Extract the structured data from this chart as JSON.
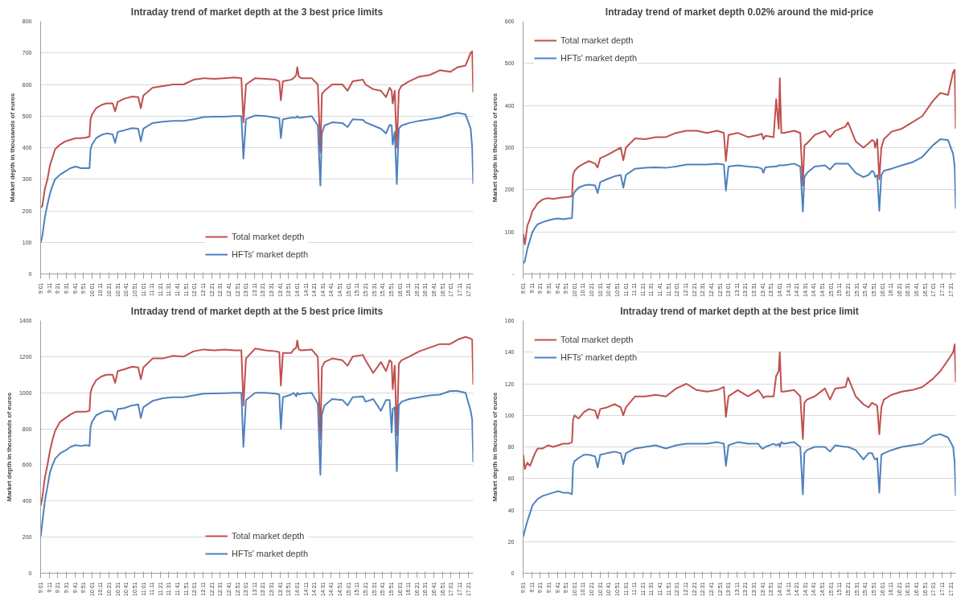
{
  "chart_data": [
    {
      "type": "line",
      "title": "Intraday trend of market depth at the 3 best price limits",
      "ylabel": "Market depth in thousands of euros",
      "grid": "y",
      "legend": "bottom",
      "x": [
        9.02,
        9.05,
        9.1,
        9.15,
        9.2,
        9.25,
        9.3,
        9.4,
        9.5,
        9.6,
        9.7,
        9.8,
        9.9,
        9.97,
        9.99,
        10.02,
        10.1,
        10.2,
        10.3,
        10.42,
        10.47,
        10.52,
        10.65,
        10.8,
        10.92,
        10.97,
        11.02,
        11.2,
        11.4,
        11.6,
        11.8,
        12.0,
        12.2,
        12.4,
        12.6,
        12.8,
        12.93,
        12.97,
        13.02,
        13.2,
        13.4,
        13.6,
        13.67,
        13.7,
        13.74,
        13.9,
        13.95,
        14.0,
        14.02,
        14.05,
        14.1,
        14.3,
        14.42,
        14.47,
        14.5,
        14.55,
        14.7,
        14.9,
        15.0,
        15.1,
        15.3,
        15.35,
        15.5,
        15.65,
        15.75,
        15.82,
        15.86,
        15.88,
        15.92,
        15.96,
        16.0,
        16.05,
        16.2,
        16.4,
        16.6,
        16.8,
        17.0,
        17.15,
        17.3,
        17.4,
        17.43,
        17.45
      ],
      "xlim": [
        9.0167,
        17.45
      ],
      "xticks": [
        {
          "value": 9.0167,
          "label": "9:01"
        },
        {
          "value": 9.1833,
          "label": "9:11"
        },
        {
          "value": 9.35,
          "label": "9:21"
        },
        {
          "value": 9.5167,
          "label": "9:31"
        },
        {
          "value": 9.6833,
          "label": "9:41"
        },
        {
          "value": 9.85,
          "label": "9:51"
        },
        {
          "value": 10.0167,
          "label": "10:01"
        },
        {
          "value": 10.1833,
          "label": "10:11"
        },
        {
          "value": 10.35,
          "label": "10:21"
        },
        {
          "value": 10.5167,
          "label": "10:31"
        },
        {
          "value": 10.6833,
          "label": "10:41"
        },
        {
          "value": 10.85,
          "label": "10:51"
        },
        {
          "value": 11.0167,
          "label": "11:01"
        },
        {
          "value": 11.1833,
          "label": "11:11"
        },
        {
          "value": 11.35,
          "label": "11:21"
        },
        {
          "value": 11.5167,
          "label": "11:31"
        },
        {
          "value": 11.6833,
          "label": "11:41"
        },
        {
          "value": 11.85,
          "label": "11:51"
        },
        {
          "value": 12.0167,
          "label": "12:01"
        },
        {
          "value": 12.1833,
          "label": "12:11"
        },
        {
          "value": 12.35,
          "label": "12:21"
        },
        {
          "value": 12.5167,
          "label": "12:31"
        },
        {
          "value": 12.6833,
          "label": "12:41"
        },
        {
          "value": 12.85,
          "label": "12:51"
        },
        {
          "value": 13.0167,
          "label": "13:01"
        },
        {
          "value": 13.1833,
          "label": "13:11"
        },
        {
          "value": 13.35,
          "label": "13:21"
        },
        {
          "value": 13.5167,
          "label": "13:31"
        },
        {
          "value": 13.6833,
          "label": "13:41"
        },
        {
          "value": 13.85,
          "label": "13:51"
        },
        {
          "value": 14.0167,
          "label": "14:01"
        },
        {
          "value": 14.1833,
          "label": "14:11"
        },
        {
          "value": 14.35,
          "label": "14:21"
        },
        {
          "value": 14.5167,
          "label": "14:31"
        },
        {
          "value": 14.6833,
          "label": "14:41"
        },
        {
          "value": 14.85,
          "label": "14:51"
        },
        {
          "value": 15.0167,
          "label": "15:01"
        },
        {
          "value": 15.1833,
          "label": "15:11"
        },
        {
          "value": 15.35,
          "label": "15:21"
        },
        {
          "value": 15.5167,
          "label": "15:31"
        },
        {
          "value": 15.6833,
          "label": "15:41"
        },
        {
          "value": 15.85,
          "label": "15:51"
        },
        {
          "value": 16.0167,
          "label": "16:01"
        },
        {
          "value": 16.1833,
          "label": "16:11"
        },
        {
          "value": 16.35,
          "label": "16:21"
        },
        {
          "value": 16.5167,
          "label": "16:31"
        },
        {
          "value": 16.6833,
          "label": "16:41"
        },
        {
          "value": 16.85,
          "label": "16:51"
        },
        {
          "value": 17.0167,
          "label": "17:01"
        },
        {
          "value": 17.1833,
          "label": "17:11"
        },
        {
          "value": 17.35,
          "label": "17:21"
        }
      ],
      "ylim": [
        0,
        800
      ],
      "yticks": [
        0,
        100,
        200,
        300,
        400,
        500,
        600,
        700,
        800
      ],
      "series": [
        {
          "name": "Total market depth",
          "color": "#c0504d",
          "values": [
            210,
            215,
            270,
            300,
            345,
            370,
            395,
            410,
            420,
            425,
            430,
            430,
            432,
            435,
            490,
            505,
            525,
            535,
            540,
            540,
            515,
            545,
            555,
            562,
            560,
            525,
            565,
            590,
            595,
            600,
            600,
            615,
            620,
            618,
            620,
            622,
            620,
            480,
            600,
            620,
            618,
            615,
            610,
            550,
            610,
            615,
            620,
            630,
            655,
            625,
            620,
            620,
            600,
            385,
            570,
            580,
            600,
            600,
            580,
            610,
            615,
            600,
            585,
            580,
            560,
            590,
            580,
            540,
            580,
            400,
            580,
            595,
            610,
            625,
            630,
            645,
            640,
            655,
            660,
            700,
            705,
            575
          ]
        },
        {
          "name": "HFTs' market depth",
          "color": "#4f81bd",
          "values": [
            100,
            120,
            180,
            220,
            255,
            280,
            300,
            315,
            325,
            335,
            340,
            335,
            335,
            335,
            395,
            410,
            430,
            440,
            445,
            442,
            415,
            450,
            455,
            462,
            460,
            420,
            460,
            478,
            482,
            485,
            485,
            490,
            497,
            498,
            498,
            500,
            500,
            365,
            490,
            502,
            500,
            495,
            493,
            430,
            490,
            495,
            495,
            495,
            500,
            495,
            495,
            500,
            470,
            280,
            445,
            470,
            480,
            478,
            465,
            490,
            488,
            480,
            470,
            460,
            445,
            472,
            470,
            410,
            450,
            285,
            460,
            470,
            478,
            485,
            490,
            495,
            505,
            510,
            505,
            460,
            400,
            285
          ]
        }
      ]
    },
    {
      "type": "line",
      "title": "Intraday trend of market depth 0.02% around the mid-price",
      "ylabel": "Market depth in thousands of euros",
      "grid": "y",
      "legend": "top left",
      "x": [
        9.02,
        9.05,
        9.1,
        9.15,
        9.2,
        9.25,
        9.3,
        9.4,
        9.5,
        9.6,
        9.7,
        9.8,
        9.9,
        9.97,
        9.99,
        10.02,
        10.1,
        10.2,
        10.3,
        10.42,
        10.47,
        10.52,
        10.65,
        10.8,
        10.92,
        10.97,
        11.02,
        11.2,
        11.4,
        11.6,
        11.8,
        12.0,
        12.2,
        12.4,
        12.6,
        12.8,
        12.93,
        12.97,
        13.02,
        13.2,
        13.4,
        13.6,
        13.67,
        13.7,
        13.74,
        13.9,
        13.95,
        14.0,
        14.02,
        14.05,
        14.1,
        14.3,
        14.42,
        14.47,
        14.5,
        14.55,
        14.7,
        14.9,
        15.0,
        15.1,
        15.3,
        15.35,
        15.5,
        15.65,
        15.75,
        15.82,
        15.86,
        15.88,
        15.92,
        15.96,
        16.0,
        16.05,
        16.2,
        16.4,
        16.6,
        16.8,
        17.0,
        17.15,
        17.3,
        17.4,
        17.43,
        17.45
      ],
      "xlim": [
        9.0167,
        17.45
      ],
      "xticks": [
        {
          "value": 9.0167,
          "label": "9:01"
        },
        {
          "value": 9.1833,
          "label": "9:11"
        },
        {
          "value": 9.35,
          "label": "9:21"
        },
        {
          "value": 9.5167,
          "label": "9:31"
        },
        {
          "value": 9.6833,
          "label": "9:41"
        },
        {
          "value": 9.85,
          "label": "9:51"
        },
        {
          "value": 10.0167,
          "label": "10:01"
        },
        {
          "value": 10.1833,
          "label": "10:11"
        },
        {
          "value": 10.35,
          "label": "10:21"
        },
        {
          "value": 10.5167,
          "label": "10:31"
        },
        {
          "value": 10.6833,
          "label": "10:41"
        },
        {
          "value": 10.85,
          "label": "10:51"
        },
        {
          "value": 11.0167,
          "label": "11:01"
        },
        {
          "value": 11.1833,
          "label": "11:11"
        },
        {
          "value": 11.35,
          "label": "11:21"
        },
        {
          "value": 11.5167,
          "label": "11:31"
        },
        {
          "value": 11.6833,
          "label": "11:41"
        },
        {
          "value": 11.85,
          "label": "11:51"
        },
        {
          "value": 12.0167,
          "label": "12:01"
        },
        {
          "value": 12.1833,
          "label": "12:11"
        },
        {
          "value": 12.35,
          "label": "12:21"
        },
        {
          "value": 12.5167,
          "label": "12:31"
        },
        {
          "value": 12.6833,
          "label": "12:41"
        },
        {
          "value": 12.85,
          "label": "12:51"
        },
        {
          "value": 13.0167,
          "label": "13:01"
        },
        {
          "value": 13.1833,
          "label": "13:11"
        },
        {
          "value": 13.35,
          "label": "13:21"
        },
        {
          "value": 13.5167,
          "label": "13:31"
        },
        {
          "value": 13.6833,
          "label": "13:41"
        },
        {
          "value": 13.85,
          "label": "13:51"
        },
        {
          "value": 14.0167,
          "label": "14:01"
        },
        {
          "value": 14.1833,
          "label": "14:11"
        },
        {
          "value": 14.35,
          "label": "14:21"
        },
        {
          "value": 14.5167,
          "label": "14:31"
        },
        {
          "value": 14.6833,
          "label": "14:41"
        },
        {
          "value": 14.85,
          "label": "14:51"
        },
        {
          "value": 15.0167,
          "label": "15:01"
        },
        {
          "value": 15.1833,
          "label": "15:11"
        },
        {
          "value": 15.35,
          "label": "15:21"
        },
        {
          "value": 15.5167,
          "label": "15:31"
        },
        {
          "value": 15.6833,
          "label": "15:41"
        },
        {
          "value": 15.85,
          "label": "15:51"
        },
        {
          "value": 16.0167,
          "label": "16:01"
        },
        {
          "value": 16.1833,
          "label": "16:11"
        },
        {
          "value": 16.35,
          "label": "16:21"
        },
        {
          "value": 16.5167,
          "label": "16:31"
        },
        {
          "value": 16.6833,
          "label": "16:41"
        },
        {
          "value": 16.85,
          "label": "16:51"
        },
        {
          "value": 17.0167,
          "label": "17:01"
        },
        {
          "value": 17.1833,
          "label": "17:11"
        },
        {
          "value": 17.35,
          "label": "17:21"
        }
      ],
      "ylim": [
        0,
        600
      ],
      "yticks": [
        {
          "value": 0,
          "label": "-"
        },
        100,
        200,
        300,
        400,
        500,
        600
      ],
      "series": [
        {
          "name": "Total market depth",
          "color": "#c0504d",
          "values": [
            95,
            70,
            115,
            130,
            150,
            158,
            168,
            177,
            180,
            178,
            180,
            182,
            183,
            185,
            235,
            245,
            255,
            262,
            268,
            262,
            253,
            275,
            282,
            292,
            300,
            270,
            300,
            322,
            320,
            325,
            325,
            335,
            340,
            340,
            335,
            340,
            335,
            268,
            330,
            335,
            325,
            330,
            333,
            320,
            328,
            325,
            415,
            345,
            465,
            335,
            335,
            340,
            335,
            210,
            305,
            310,
            330,
            340,
            325,
            340,
            350,
            360,
            315,
            300,
            310,
            318,
            315,
            300,
            320,
            225,
            300,
            320,
            338,
            345,
            360,
            375,
            410,
            430,
            425,
            480,
            485,
            345
          ]
        },
        {
          "name": "HFTs' market depth",
          "color": "#4f81bd",
          "values": [
            25,
            30,
            60,
            80,
            100,
            110,
            118,
            123,
            127,
            130,
            132,
            130,
            132,
            133,
            185,
            195,
            205,
            210,
            212,
            210,
            192,
            218,
            225,
            232,
            235,
            205,
            235,
            250,
            252,
            253,
            252,
            255,
            260,
            260,
            260,
            262,
            260,
            198,
            255,
            258,
            255,
            253,
            250,
            240,
            253,
            255,
            255,
            258,
            258,
            258,
            258,
            262,
            255,
            148,
            230,
            240,
            255,
            258,
            248,
            262,
            262,
            262,
            240,
            230,
            235,
            245,
            240,
            230,
            235,
            150,
            235,
            245,
            250,
            258,
            265,
            278,
            305,
            320,
            318,
            285,
            255,
            155
          ]
        }
      ]
    },
    {
      "type": "line",
      "title": "Intraday trend of market depth at the 5 best price limits",
      "ylabel": "Market depth in thousands of euros",
      "grid": "y",
      "legend": "bottom",
      "x": [
        9.02,
        9.05,
        9.1,
        9.15,
        9.2,
        9.25,
        9.3,
        9.4,
        9.5,
        9.6,
        9.7,
        9.8,
        9.9,
        9.97,
        9.99,
        10.02,
        10.1,
        10.2,
        10.3,
        10.42,
        10.47,
        10.52,
        10.65,
        10.8,
        10.92,
        10.97,
        11.02,
        11.2,
        11.4,
        11.6,
        11.8,
        12.0,
        12.2,
        12.4,
        12.6,
        12.8,
        12.93,
        12.97,
        13.02,
        13.2,
        13.4,
        13.6,
        13.67,
        13.7,
        13.74,
        13.9,
        13.95,
        14.0,
        14.02,
        14.05,
        14.1,
        14.3,
        14.42,
        14.47,
        14.5,
        14.55,
        14.7,
        14.9,
        15.0,
        15.1,
        15.3,
        15.35,
        15.5,
        15.65,
        15.75,
        15.82,
        15.86,
        15.88,
        15.92,
        15.96,
        16.0,
        16.05,
        16.2,
        16.4,
        16.6,
        16.8,
        17.0,
        17.15,
        17.3,
        17.4,
        17.43,
        17.45
      ],
      "xlim": [
        9.0167,
        17.45
      ],
      "xticks": [
        {
          "value": 9.0167,
          "label": "9:01"
        },
        {
          "value": 9.1833,
          "label": "9:11"
        },
        {
          "value": 9.35,
          "label": "9:21"
        },
        {
          "value": 9.5167,
          "label": "9:31"
        },
        {
          "value": 9.6833,
          "label": "9:41"
        },
        {
          "value": 9.85,
          "label": "9:51"
        },
        {
          "value": 10.0167,
          "label": "10:01"
        },
        {
          "value": 10.1833,
          "label": "10:11"
        },
        {
          "value": 10.35,
          "label": "10:21"
        },
        {
          "value": 10.5167,
          "label": "10:31"
        },
        {
          "value": 10.6833,
          "label": "10:41"
        },
        {
          "value": 10.85,
          "label": "10:51"
        },
        {
          "value": 11.0167,
          "label": "11:01"
        },
        {
          "value": 11.1833,
          "label": "11:11"
        },
        {
          "value": 11.35,
          "label": "11:21"
        },
        {
          "value": 11.5167,
          "label": "11:31"
        },
        {
          "value": 11.6833,
          "label": "11:41"
        },
        {
          "value": 11.85,
          "label": "11:51"
        },
        {
          "value": 12.0167,
          "label": "12:01"
        },
        {
          "value": 12.1833,
          "label": "12:11"
        },
        {
          "value": 12.35,
          "label": "12:21"
        },
        {
          "value": 12.5167,
          "label": "12:31"
        },
        {
          "value": 12.6833,
          "label": "12:41"
        },
        {
          "value": 12.85,
          "label": "12:51"
        },
        {
          "value": 13.0167,
          "label": "13:01"
        },
        {
          "value": 13.1833,
          "label": "13:11"
        },
        {
          "value": 13.35,
          "label": "13:21"
        },
        {
          "value": 13.5167,
          "label": "13:31"
        },
        {
          "value": 13.6833,
          "label": "13:41"
        },
        {
          "value": 13.85,
          "label": "13:51"
        },
        {
          "value": 14.0167,
          "label": "14:01"
        },
        {
          "value": 14.1833,
          "label": "14:11"
        },
        {
          "value": 14.35,
          "label": "14:21"
        },
        {
          "value": 14.5167,
          "label": "14:31"
        },
        {
          "value": 14.6833,
          "label": "14:41"
        },
        {
          "value": 14.85,
          "label": "14:51"
        },
        {
          "value": 15.0167,
          "label": "15:01"
        },
        {
          "value": 15.1833,
          "label": "15:11"
        },
        {
          "value": 15.35,
          "label": "15:21"
        },
        {
          "value": 15.5167,
          "label": "15:31"
        },
        {
          "value": 15.6833,
          "label": "15:41"
        },
        {
          "value": 15.85,
          "label": "15:51"
        },
        {
          "value": 16.0167,
          "label": "16:01"
        },
        {
          "value": 16.1833,
          "label": "16:11"
        },
        {
          "value": 16.35,
          "label": "16:21"
        },
        {
          "value": 16.5167,
          "label": "16:31"
        },
        {
          "value": 16.6833,
          "label": "16:41"
        },
        {
          "value": 16.85,
          "label": "16:51"
        },
        {
          "value": 17.0167,
          "label": "17:01"
        },
        {
          "value": 17.1833,
          "label": "17:11"
        },
        {
          "value": 17.35,
          "label": "17:21"
        }
      ],
      "ylim": [
        0,
        1400
      ],
      "yticks": [
        0,
        200,
        400,
        600,
        800,
        1000,
        1200,
        1400
      ],
      "series": [
        {
          "name": "Total market depth",
          "color": "#c0504d",
          "values": [
            375,
            420,
            530,
            600,
            680,
            740,
            790,
            840,
            860,
            880,
            895,
            895,
            895,
            900,
            1000,
            1030,
            1070,
            1090,
            1100,
            1100,
            1055,
            1120,
            1130,
            1145,
            1140,
            1075,
            1140,
            1190,
            1190,
            1205,
            1200,
            1230,
            1240,
            1235,
            1240,
            1235,
            1235,
            930,
            1190,
            1245,
            1235,
            1230,
            1225,
            1040,
            1220,
            1220,
            1240,
            1250,
            1290,
            1240,
            1235,
            1240,
            1200,
            745,
            1140,
            1170,
            1190,
            1180,
            1150,
            1200,
            1210,
            1180,
            1110,
            1170,
            1120,
            1180,
            1170,
            1020,
            1150,
            765,
            1160,
            1180,
            1200,
            1230,
            1250,
            1270,
            1270,
            1295,
            1310,
            1300,
            1295,
            1045
          ]
        },
        {
          "name": "HFTs' market depth",
          "color": "#4f81bd",
          "values": [
            205,
            280,
            400,
            480,
            560,
            600,
            635,
            665,
            680,
            700,
            710,
            705,
            710,
            705,
            810,
            840,
            875,
            890,
            900,
            895,
            850,
            910,
            915,
            930,
            935,
            860,
            920,
            955,
            970,
            975,
            975,
            985,
            995,
            997,
            998,
            1000,
            1000,
            700,
            960,
            1000,
            1000,
            995,
            990,
            800,
            975,
            990,
            1000,
            980,
            1000,
            990,
            995,
            1000,
            940,
            545,
            880,
            930,
            965,
            960,
            930,
            975,
            980,
            950,
            965,
            900,
            960,
            960,
            780,
            910,
            920,
            565,
            930,
            950,
            965,
            975,
            985,
            990,
            1010,
            1010,
            1000,
            900,
            850,
            615
          ]
        }
      ]
    },
    {
      "type": "line",
      "title": "Intraday trend of market depth at the best price limit",
      "ylabel": "Market depth in thousands of euros",
      "grid": "y",
      "legend": "top left",
      "x": [
        9.02,
        9.05,
        9.1,
        9.15,
        9.2,
        9.25,
        9.3,
        9.4,
        9.5,
        9.6,
        9.7,
        9.8,
        9.9,
        9.97,
        9.99,
        10.02,
        10.1,
        10.2,
        10.3,
        10.42,
        10.47,
        10.52,
        10.65,
        10.8,
        10.92,
        10.97,
        11.02,
        11.2,
        11.4,
        11.6,
        11.8,
        12.0,
        12.2,
        12.4,
        12.6,
        12.8,
        12.93,
        12.97,
        13.02,
        13.2,
        13.4,
        13.6,
        13.67,
        13.7,
        13.74,
        13.9,
        13.95,
        14.0,
        14.02,
        14.05,
        14.1,
        14.3,
        14.42,
        14.47,
        14.5,
        14.55,
        14.7,
        14.9,
        15.0,
        15.1,
        15.3,
        15.35,
        15.5,
        15.65,
        15.75,
        15.82,
        15.86,
        15.88,
        15.92,
        15.96,
        16.0,
        16.05,
        16.2,
        16.4,
        16.6,
        16.8,
        17.0,
        17.15,
        17.3,
        17.4,
        17.43,
        17.45
      ],
      "xlim": [
        9.0167,
        17.45
      ],
      "xticks": [
        {
          "value": 9.0167,
          "label": "9:01"
        },
        {
          "value": 9.1833,
          "label": "9:11"
        },
        {
          "value": 9.35,
          "label": "9:21"
        },
        {
          "value": 9.5167,
          "label": "9:31"
        },
        {
          "value": 9.6833,
          "label": "9:41"
        },
        {
          "value": 9.85,
          "label": "9:51"
        },
        {
          "value": 10.0167,
          "label": "10:01"
        },
        {
          "value": 10.1833,
          "label": "10:11"
        },
        {
          "value": 10.35,
          "label": "10:21"
        },
        {
          "value": 10.5167,
          "label": "10:31"
        },
        {
          "value": 10.6833,
          "label": "10:41"
        },
        {
          "value": 10.85,
          "label": "10:51"
        },
        {
          "value": 11.0167,
          "label": "11:01"
        },
        {
          "value": 11.1833,
          "label": "11:11"
        },
        {
          "value": 11.35,
          "label": "11:21"
        },
        {
          "value": 11.5167,
          "label": "11:31"
        },
        {
          "value": 11.6833,
          "label": "11:41"
        },
        {
          "value": 11.85,
          "label": "11:51"
        },
        {
          "value": 12.0167,
          "label": "12:01"
        },
        {
          "value": 12.1833,
          "label": "12:11"
        },
        {
          "value": 12.35,
          "label": "12:21"
        },
        {
          "value": 12.5167,
          "label": "12:31"
        },
        {
          "value": 12.6833,
          "label": "12:41"
        },
        {
          "value": 12.85,
          "label": "12:51"
        },
        {
          "value": 13.0167,
          "label": "13:01"
        },
        {
          "value": 13.1833,
          "label": "13:11"
        },
        {
          "value": 13.35,
          "label": "13:21"
        },
        {
          "value": 13.5167,
          "label": "13:31"
        },
        {
          "value": 13.6833,
          "label": "13:41"
        },
        {
          "value": 13.85,
          "label": "13:51"
        },
        {
          "value": 14.0167,
          "label": "14:01"
        },
        {
          "value": 14.1833,
          "label": "14:11"
        },
        {
          "value": 14.35,
          "label": "14:21"
        },
        {
          "value": 14.5167,
          "label": "14:31"
        },
        {
          "value": 14.6833,
          "label": "14:41"
        },
        {
          "value": 14.85,
          "label": "14:51"
        },
        {
          "value": 15.0167,
          "label": "15:01"
        },
        {
          "value": 15.1833,
          "label": "15:11"
        },
        {
          "value": 15.35,
          "label": "15:21"
        },
        {
          "value": 15.5167,
          "label": "15:31"
        },
        {
          "value": 15.6833,
          "label": "15:41"
        },
        {
          "value": 15.85,
          "label": "15:51"
        },
        {
          "value": 16.0167,
          "label": "16:01"
        },
        {
          "value": 16.1833,
          "label": "16:11"
        },
        {
          "value": 16.35,
          "label": "16:21"
        },
        {
          "value": 16.5167,
          "label": "16:31"
        },
        {
          "value": 16.6833,
          "label": "16:41"
        },
        {
          "value": 16.85,
          "label": "16:51"
        },
        {
          "value": 17.0167,
          "label": "17:01"
        },
        {
          "value": 17.1833,
          "label": "17:11"
        },
        {
          "value": 17.35,
          "label": "17:21"
        }
      ],
      "ylim": [
        0,
        160
      ],
      "yticks": [
        0,
        20,
        40,
        60,
        80,
        100,
        120,
        140,
        160
      ],
      "series": [
        {
          "name": "Total market depth",
          "color": "#c0504d",
          "values": [
            75,
            66,
            70,
            68,
            72,
            76,
            79,
            79,
            81,
            80,
            81,
            82,
            82,
            83,
            97,
            100,
            98,
            102,
            104,
            103,
            98,
            104,
            105,
            107,
            105,
            100,
            105,
            112,
            112,
            113,
            112,
            117,
            120,
            116,
            115,
            116,
            118,
            99,
            112,
            116,
            112,
            116,
            113,
            111,
            112,
            112,
            125,
            128,
            140,
            115,
            115,
            116,
            112,
            85,
            108,
            110,
            112,
            117,
            110,
            117,
            118,
            124,
            112,
            107,
            105,
            108,
            107,
            107,
            106,
            88,
            105,
            110,
            113,
            115,
            116,
            118,
            123,
            128,
            135,
            140,
            145,
            121
          ]
        },
        {
          "name": "HFTs' market depth",
          "color": "#4f81bd",
          "values": [
            23,
            27,
            33,
            38,
            43,
            45,
            47,
            49,
            50,
            51,
            52,
            51,
            51,
            50,
            68,
            71,
            73,
            75,
            75,
            74,
            67,
            75,
            76,
            77,
            76,
            69,
            76,
            79,
            80,
            81,
            79,
            81,
            82,
            82,
            82,
            83,
            82,
            68,
            81,
            83,
            82,
            82,
            79,
            79,
            80,
            82,
            81,
            82,
            80,
            83,
            82,
            83,
            80,
            50,
            76,
            78,
            80,
            80,
            77,
            81,
            80,
            80,
            78,
            72,
            76,
            76,
            73,
            72,
            73,
            51,
            75,
            76,
            78,
            80,
            81,
            82,
            87,
            88,
            86,
            80,
            70,
            49
          ]
        }
      ]
    }
  ]
}
